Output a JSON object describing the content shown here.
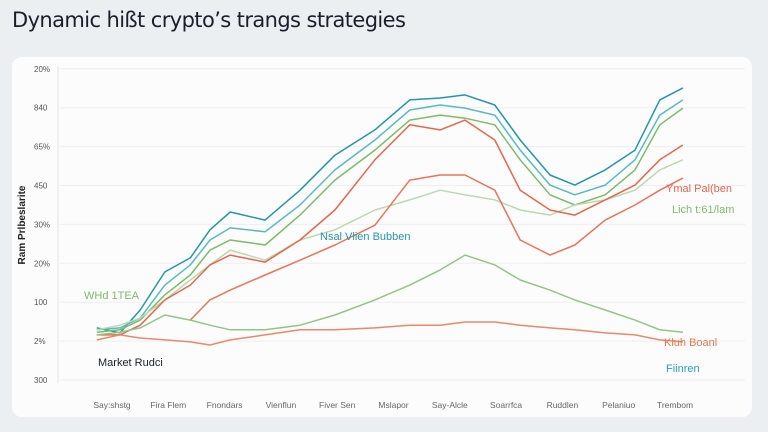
{
  "title": "Dynamic hißt crypto’s trangs strategies",
  "chart_data": {
    "type": "line",
    "title": "Dynamic hißt crypto’s trangs strategies",
    "ylabel": "Ram Prlbeslarite",
    "xlabel": "",
    "y_tick_labels": [
      "300",
      "2%",
      "100",
      "20%",
      "30%",
      "450",
      "65%",
      "840",
      "20%"
    ],
    "ylim": [
      0,
      8
    ],
    "categories": [
      "Say:shstg",
      "Fira Flem",
      "Fnondars",
      "Vienflun",
      "Fiver Sen",
      "Mslapor",
      "Say-Alcle",
      "Soarrfca",
      "Ruddlen",
      "Pelaniuo",
      "Trembom"
    ],
    "grid": true,
    "x": [
      -0.27,
      0.14,
      0.5,
      0.94,
      1.39,
      1.74,
      2.1,
      2.72,
      3.34,
      3.96,
      4.67,
      5.29,
      5.83,
      6.27,
      6.8,
      7.25,
      7.78,
      8.22,
      8.76,
      9.29,
      9.73,
      10.14
    ],
    "series": [
      {
        "color": "#2794a8",
        "values": [
          1.34,
          1.21,
          1.8,
          2.78,
          3.14,
          3.86,
          4.32,
          4.11,
          4.88,
          5.78,
          6.43,
          7.2,
          7.25,
          7.33,
          7.07,
          6.17,
          5.27,
          5.01,
          5.4,
          5.91,
          7.2,
          7.51
        ]
      },
      {
        "color": "#5cb8c2",
        "values": [
          1.29,
          1.34,
          1.59,
          2.44,
          2.96,
          3.6,
          3.91,
          3.81,
          4.5,
          5.4,
          6.17,
          6.94,
          7.07,
          6.99,
          6.81,
          5.91,
          5.01,
          4.76,
          5.01,
          5.66,
          6.81,
          7.2
        ]
      },
      {
        "color": "#7dbb6a",
        "values": [
          1.23,
          1.29,
          1.54,
          2.19,
          2.7,
          3.34,
          3.6,
          3.47,
          4.24,
          5.14,
          5.91,
          6.68,
          6.81,
          6.73,
          6.56,
          5.66,
          4.76,
          4.5,
          4.76,
          5.4,
          6.56,
          6.99
        ]
      },
      {
        "color": "#bcd8b0",
        "values": [
          1.29,
          1.41,
          1.59,
          2.06,
          2.57,
          2.96,
          3.34,
          3.08,
          3.6,
          3.86,
          4.37,
          4.63,
          4.88,
          4.76,
          4.63,
          4.37,
          4.24,
          4.5,
          4.63,
          4.88,
          5.4,
          5.66
        ]
      },
      {
        "color": "#e0694f",
        "values": [
          1.16,
          1.16,
          1.41,
          2.06,
          2.44,
          2.96,
          3.21,
          3.03,
          3.6,
          4.37,
          5.66,
          6.56,
          6.43,
          6.68,
          6.17,
          4.88,
          4.37,
          4.24,
          4.63,
          5.01,
          5.66,
          6.04
        ]
      },
      {
        "color": "#e4765a",
        "values": [
          null,
          null,
          null,
          null,
          1.54,
          2.06,
          2.31,
          2.7,
          3.08,
          3.47,
          3.98,
          5.14,
          5.27,
          5.27,
          4.88,
          3.6,
          3.21,
          3.47,
          4.11,
          4.5,
          4.88,
          5.19
        ]
      },
      {
        "color": "#93c585",
        "values": [
          1.16,
          1.23,
          1.34,
          1.67,
          1.54,
          1.41,
          1.29,
          1.29,
          1.41,
          1.67,
          2.06,
          2.44,
          2.83,
          3.21,
          2.96,
          2.57,
          2.31,
          2.06,
          1.8,
          1.54,
          1.29,
          1.23
        ]
      },
      {
        "color": "#e8896c",
        "values": [
          1.03,
          1.16,
          1.08,
          1.03,
          0.98,
          0.9,
          1.03,
          1.16,
          1.29,
          1.29,
          1.34,
          1.41,
          1.41,
          1.49,
          1.49,
          1.41,
          1.34,
          1.29,
          1.21,
          1.16,
          1.03,
          0.98
        ]
      }
    ],
    "annotations": [
      {
        "text": "Nsal Vlien Bubben",
        "color": "#2a93a8"
      },
      {
        "text": "WHd 1TEA",
        "color": "#7dbb6a"
      },
      {
        "text": "Market Rudci",
        "color": "#1a1f2b"
      },
      {
        "text": "Ymal Pal(ben",
        "color": "#e0694f"
      },
      {
        "text": "Lich t:61/lam",
        "color": "#7dbb6a"
      },
      {
        "text": "Kluh Boanl",
        "color": "#e2784f"
      },
      {
        "text": "Fiinren",
        "color": "#2a9db5"
      }
    ]
  }
}
